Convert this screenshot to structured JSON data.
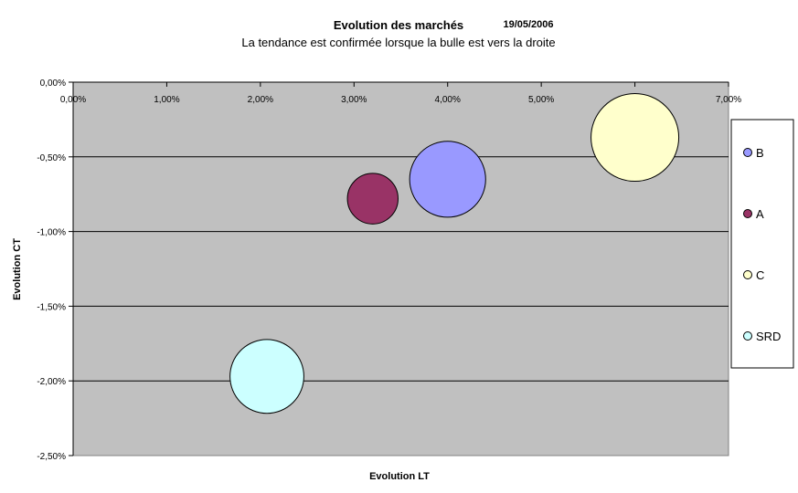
{
  "chart_data": {
    "type": "bubble",
    "title": "Evolution des marchés",
    "date": "19/05/2006",
    "subtitle": "La tendance est confirmée lorsque la bulle est vers la droite",
    "xlabel": "Evolution LT",
    "ylabel": "Evolution CT",
    "xlim": [
      0,
      7
    ],
    "ylim": [
      -2.5,
      0
    ],
    "x_ticks": [
      "0,00%",
      "1,00%",
      "2,00%",
      "3,00%",
      "4,00%",
      "5,00%",
      "6,00%",
      "7,00%"
    ],
    "y_ticks": [
      "0,00%",
      "-0,50%",
      "-1,00%",
      "-1,50%",
      "-2,00%",
      "-2,50%"
    ],
    "grid": "horizontal",
    "legend_position": "right",
    "plot_background": "#c0c0c0",
    "series": [
      {
        "name": "B",
        "x": 4.0,
        "y": -0.65,
        "size": 36,
        "color": "#9999ff"
      },
      {
        "name": "A",
        "x": 3.2,
        "y": -0.78,
        "size": 16,
        "color": "#993366"
      },
      {
        "name": "C",
        "x": 6.0,
        "y": -0.37,
        "size": 48,
        "color": "#ffffcc"
      },
      {
        "name": "SRD",
        "x": 2.07,
        "y": -1.97,
        "size": 34,
        "color": "#ccffff"
      }
    ]
  }
}
